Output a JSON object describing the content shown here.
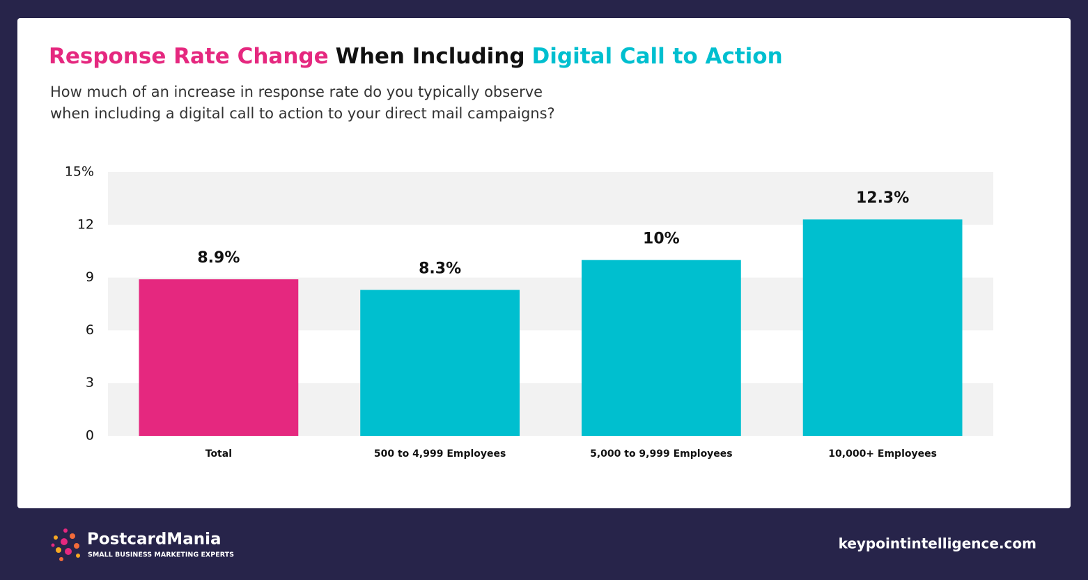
{
  "chart_data": {
    "type": "bar",
    "title": [
      {
        "text": "Response Rate Change",
        "color": "#e5287f"
      },
      {
        "text": "When Including",
        "color": "#111111"
      },
      {
        "text": "Digital Call to Action",
        "color": "#00bfcf"
      }
    ],
    "subtitle": [
      "How much of an increase in response rate do you typically observe",
      "when including a digital call to action to your direct mail campaigns?"
    ],
    "categories": [
      "Total",
      "500 to 4,999 Employees",
      "5,000 to 9,999 Employees",
      "10,000+ Employees"
    ],
    "values": [
      8.9,
      8.3,
      10,
      12.3
    ],
    "value_labels": [
      "8.9%",
      "8.3%",
      "10%",
      "12.3%"
    ],
    "colors": [
      "#e5287f",
      "#00bfcf",
      "#00bfcf",
      "#00bfcf"
    ],
    "ylim": [
      0,
      15
    ],
    "yticks": [
      0,
      3,
      6,
      9,
      12,
      {
        "value": 15,
        "label": "15%"
      }
    ],
    "grid": "bands"
  },
  "footer": {
    "brand": "PostcardMania",
    "tagline": "SMALL BUSINESS MARKETING EXPERTS",
    "source": "keypointintelligence.com"
  }
}
